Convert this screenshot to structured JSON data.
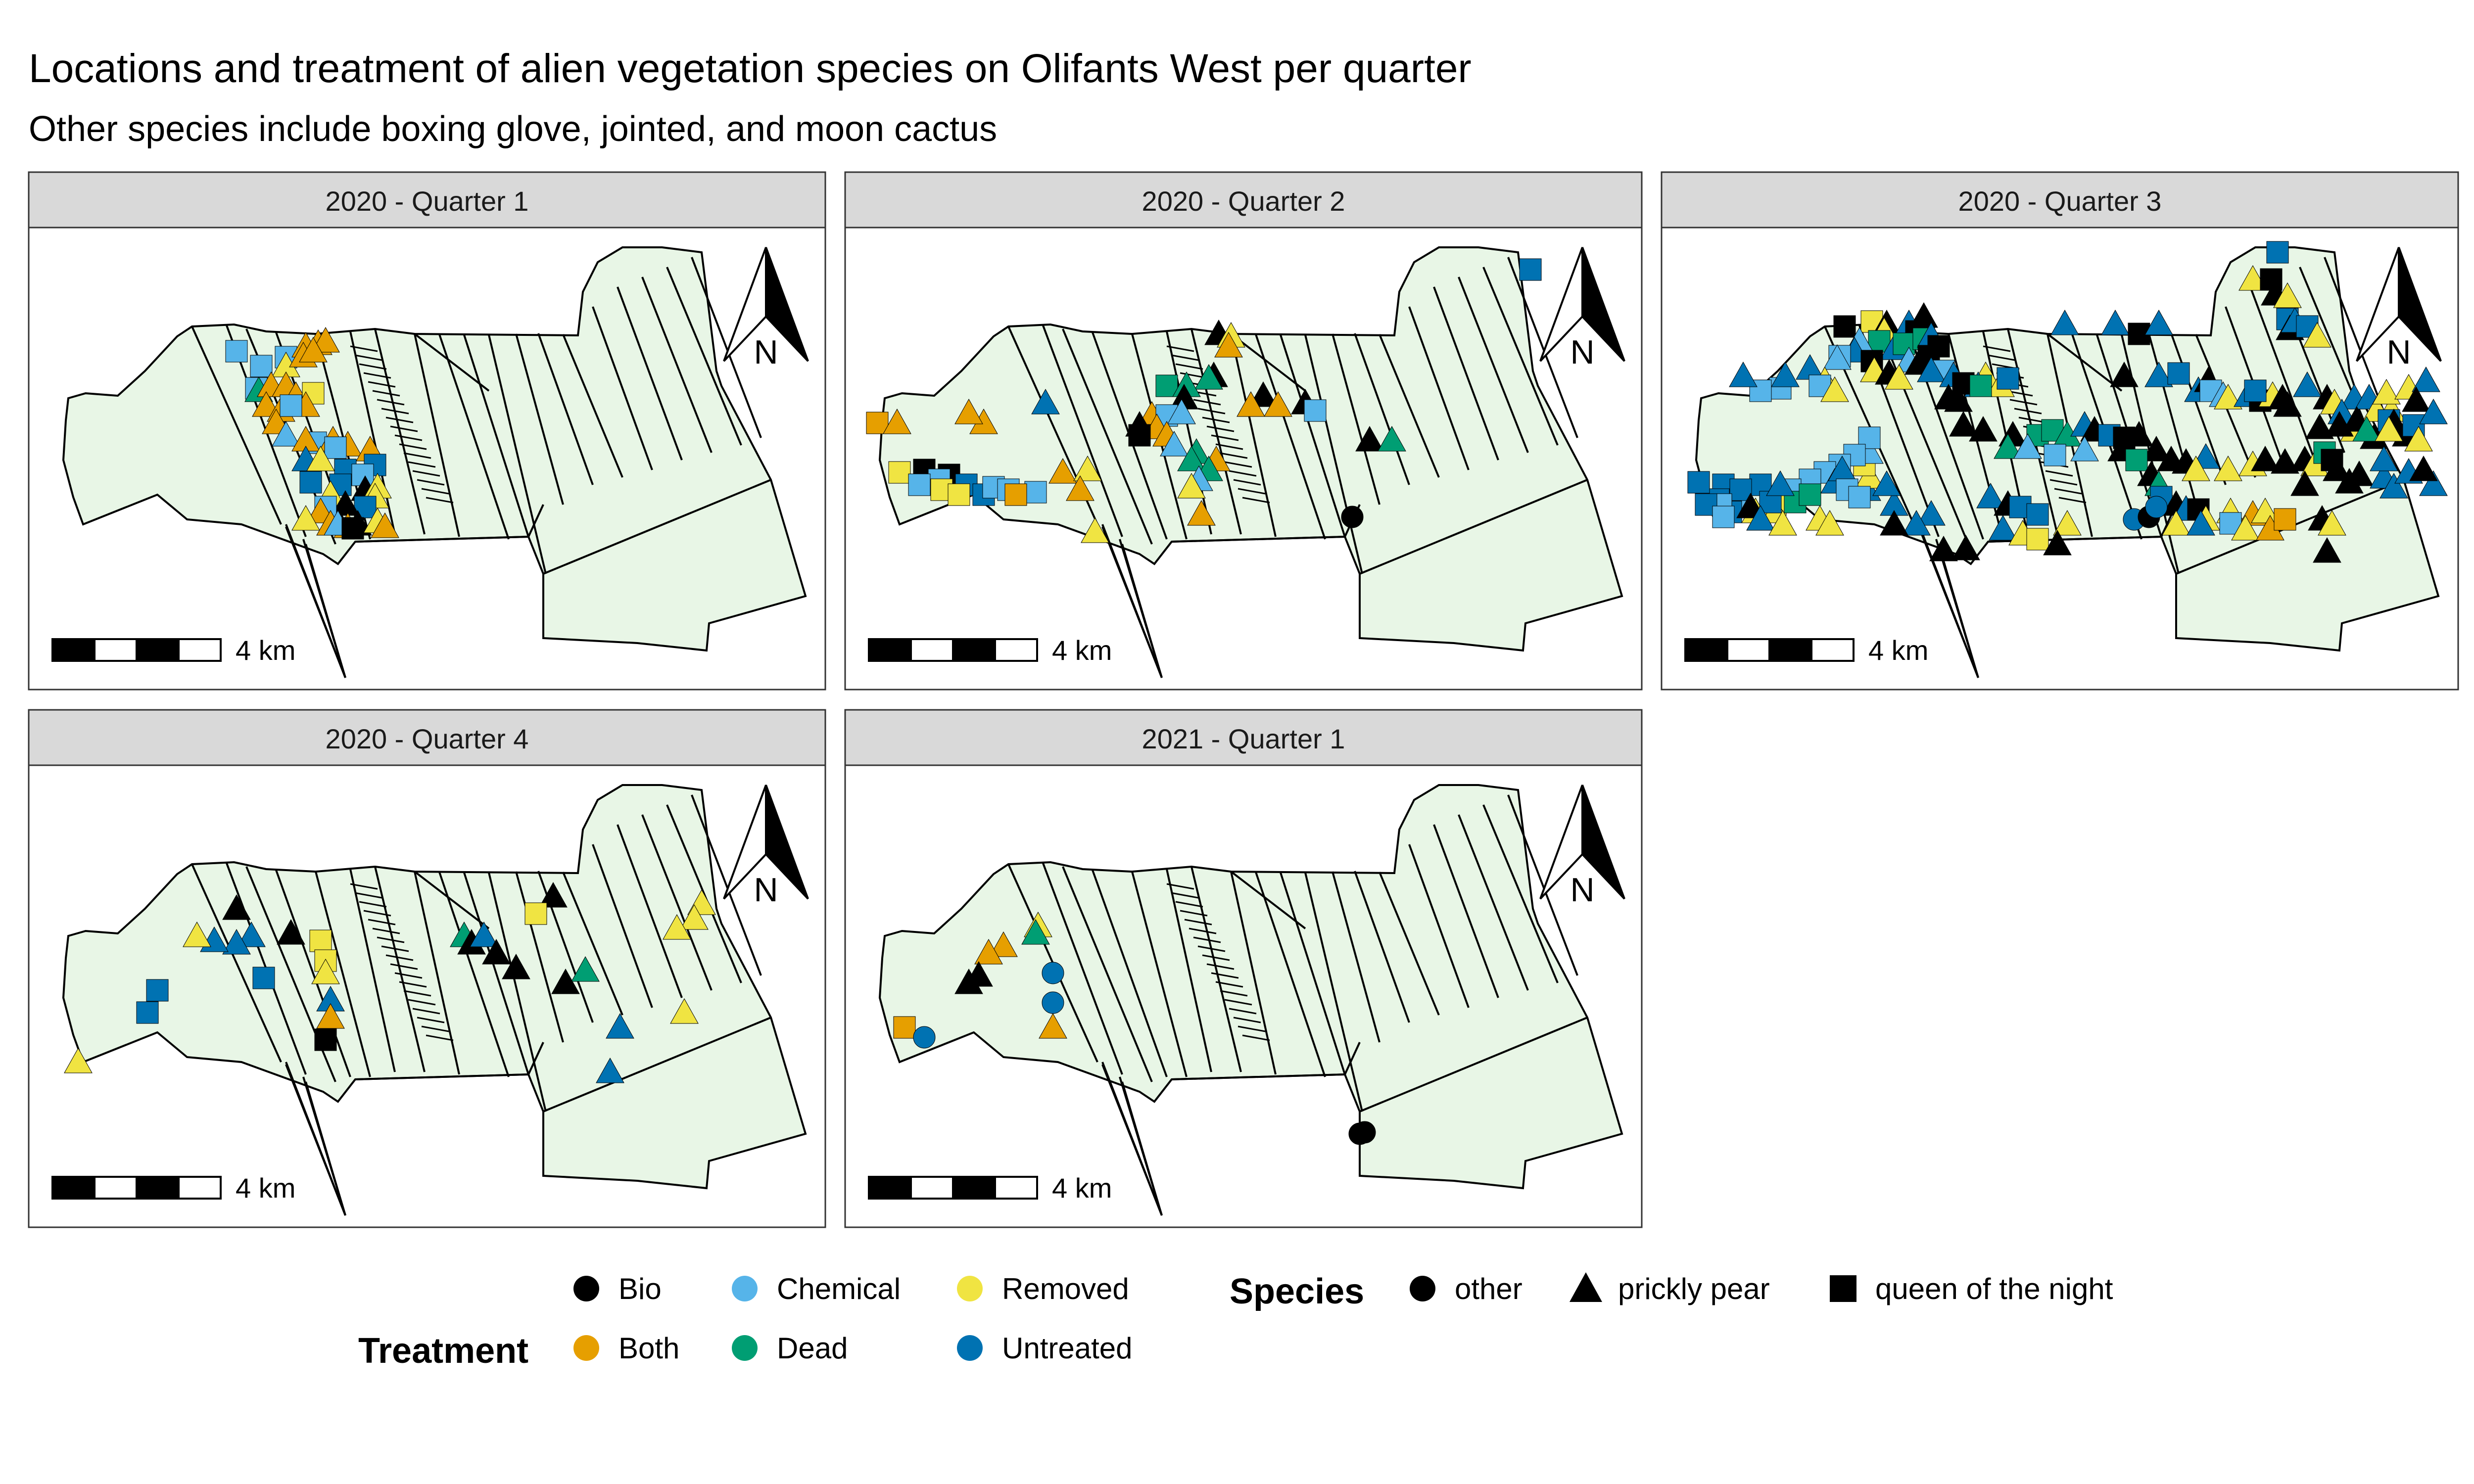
{
  "title": "Locations and treatment of alien vegetation species on Olifants West per quarter",
  "subtitle": "Other species include boxing glove, jointed, and moon cactus",
  "panels": [
    {
      "label": "2020 - Quarter 1"
    },
    {
      "label": "2020 - Quarter 2"
    },
    {
      "label": "2020 - Quarter 3"
    },
    {
      "label": "2020 - Quarter 4"
    },
    {
      "label": "2021 - Quarter 1"
    }
  ],
  "north_arrow_label": "N",
  "scale_bar_label": "4 km",
  "legend": {
    "treatment_title": "Treatment",
    "treatment_items": [
      {
        "label": "Bio",
        "color": "#000000"
      },
      {
        "label": "Both",
        "color": "#E69F00"
      },
      {
        "label": "Chemical",
        "color": "#56B4E9"
      },
      {
        "label": "Dead",
        "color": "#009E73"
      },
      {
        "label": "Removed",
        "color": "#F0E442"
      },
      {
        "label": "Untreated",
        "color": "#0072B2"
      }
    ],
    "species_title": "Species",
    "species_items": [
      {
        "label": "other",
        "shape": "circle"
      },
      {
        "label": "prickly pear",
        "shape": "triangle"
      },
      {
        "label": "queen of the night",
        "shape": "square"
      }
    ]
  },
  "colors": {
    "strip_fill": "#D9D9D9",
    "land_fill": "#E8F6E6",
    "land_stroke": "#000000"
  }
}
